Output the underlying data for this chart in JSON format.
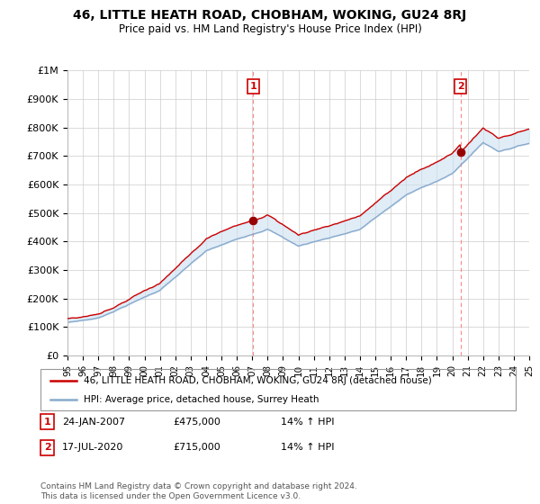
{
  "title": "46, LITTLE HEATH ROAD, CHOBHAM, WOKING, GU24 8RJ",
  "subtitle": "Price paid vs. HM Land Registry's House Price Index (HPI)",
  "ylim": [
    0,
    1000000
  ],
  "yticks": [
    0,
    100000,
    200000,
    300000,
    400000,
    500000,
    600000,
    700000,
    800000,
    900000,
    1000000
  ],
  "ytick_labels": [
    "£0",
    "£100K",
    "£200K",
    "£300K",
    "£400K",
    "£500K",
    "£600K",
    "£700K",
    "£800K",
    "£900K",
    "£1M"
  ],
  "sale1_date": 2007.07,
  "sale1_price": 475000,
  "sale1_label": "1",
  "sale2_date": 2020.54,
  "sale2_price": 715000,
  "sale2_label": "2",
  "line1_color": "#cc0000",
  "line2_color": "#88aacc",
  "fill_color": "#cce0f0",
  "marker_color": "#990000",
  "vline_color": "#ff8888",
  "annotation_box_facecolor": "#ffffff",
  "annotation_box_edgecolor": "#cc0000",
  "legend_line1": "46, LITTLE HEATH ROAD, CHOBHAM, WOKING, GU24 8RJ (detached house)",
  "legend_line2": "HPI: Average price, detached house, Surrey Heath",
  "table_row1": [
    "1",
    "24-JAN-2007",
    "£475,000",
    "14% ↑ HPI"
  ],
  "table_row2": [
    "2",
    "17-JUL-2020",
    "£715,000",
    "14% ↑ HPI"
  ],
  "footnote": "Contains HM Land Registry data © Crown copyright and database right 2024.\nThis data is licensed under the Open Government Licence v3.0.",
  "background_color": "#ffffff",
  "grid_color": "#cccccc",
  "xmin": 1995,
  "xmax": 2025
}
